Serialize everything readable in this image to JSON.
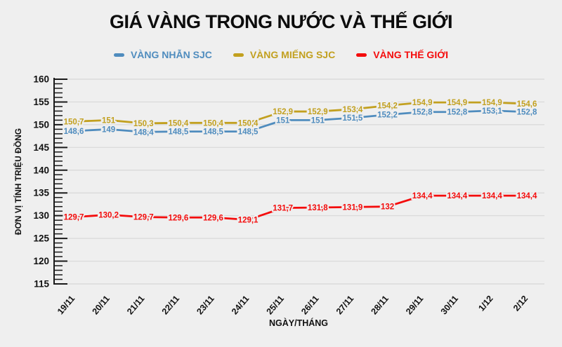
{
  "title": "GIÁ VÀNG TRONG NƯỚC VÀ THẾ GIỚI",
  "legend": [
    {
      "label": "VÀNG NHẪN SJC",
      "color": "#4f8cbe"
    },
    {
      "label": "VÀNG MIẾNG SJC",
      "color": "#c2a01f"
    },
    {
      "label": "VÀNG THẾ GIỚI",
      "color": "#f40c0c"
    }
  ],
  "colors": {
    "background": "#efefef",
    "gridline": "#d8d8d8",
    "axis": "#1a1a1a",
    "tick_label": "#111111"
  },
  "chart_data": {
    "type": "line",
    "title": "GIÁ VÀNG TRONG NƯỚC VÀ THẾ GIỚI",
    "xlabel": "NGÀY/THÁNG",
    "ylabel": "ĐƠN VỊ TÍNH TRIỆU ĐỒNG",
    "ylim": [
      115,
      160
    ],
    "y_major_step": 5,
    "y_minor_step": 1,
    "grid": "horizontal-major",
    "legend_position": "top",
    "decimal_separator": ",",
    "categories": [
      "19/11",
      "20/11",
      "21/11",
      "22/11",
      "23/11",
      "24/11",
      "25/11",
      "26/11",
      "27/11",
      "28/11",
      "29/11",
      "30/11",
      "1/12",
      "2/12"
    ],
    "series": [
      {
        "name": "VÀNG NHẪN SJC",
        "color": "#4f8cbe",
        "values": [
          148.6,
          149,
          148.4,
          148.5,
          148.5,
          148.5,
          151,
          151,
          151.5,
          152.2,
          152.8,
          152.8,
          153.1,
          152.8
        ]
      },
      {
        "name": "VÀNG MIẾNG SJC",
        "color": "#c2a01f",
        "values": [
          150.7,
          151,
          150.3,
          150.4,
          150.4,
          150.4,
          152.9,
          152.9,
          153.4,
          154.2,
          154.9,
          154.9,
          154.9,
          154.6
        ]
      },
      {
        "name": "VÀNG THẾ GIỚI",
        "color": "#f40c0c",
        "values": [
          129.7,
          130.2,
          129.7,
          129.6,
          129.6,
          129.1,
          131.7,
          131.8,
          131.9,
          132,
          134.4,
          134.4,
          134.4,
          134.4
        ]
      }
    ]
  }
}
